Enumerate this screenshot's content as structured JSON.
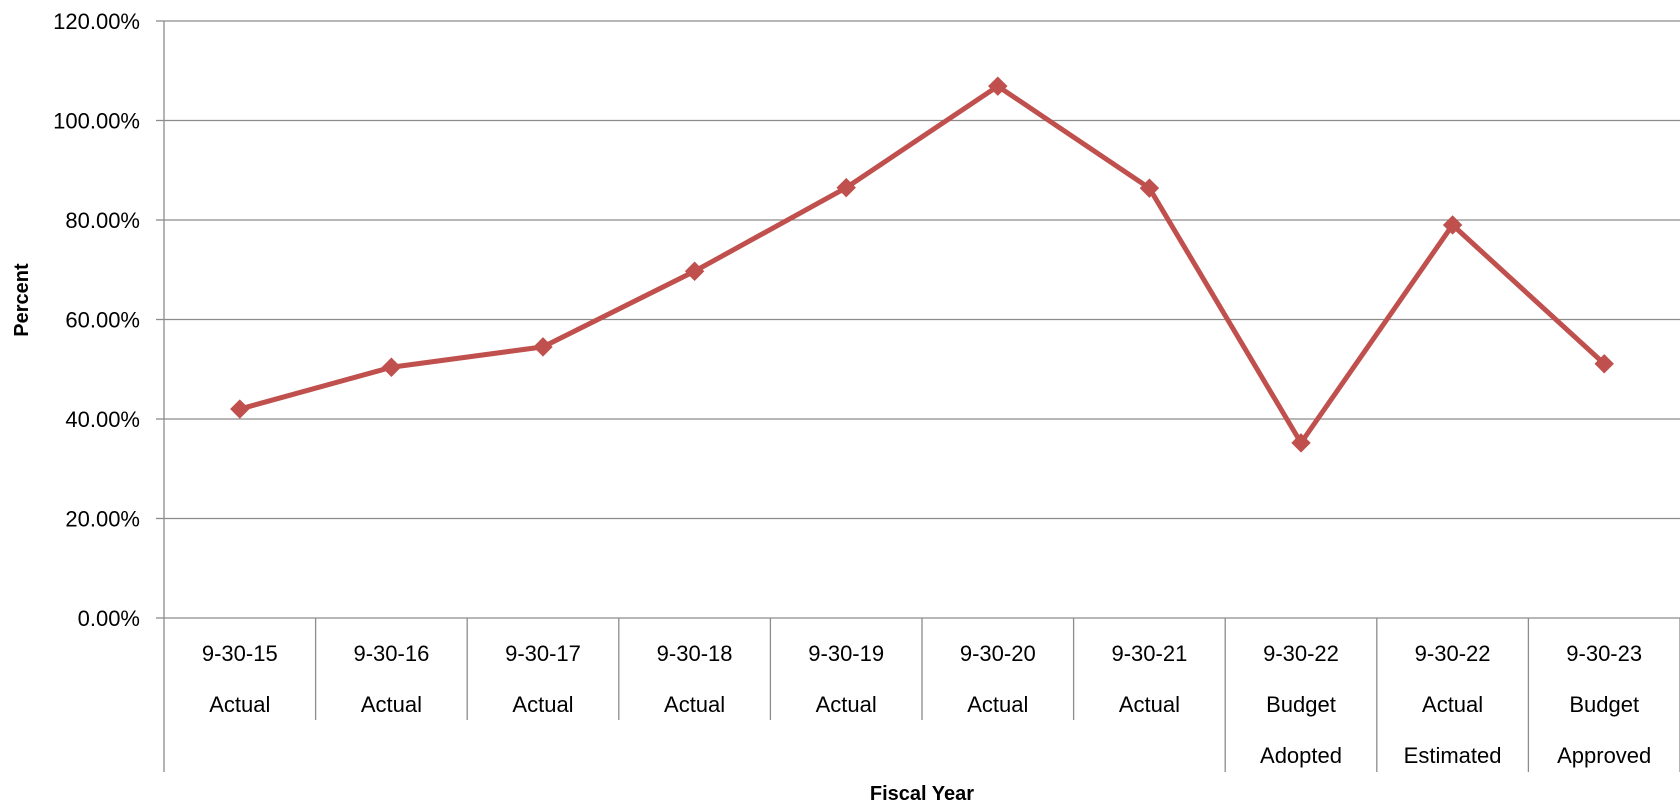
{
  "chart_data": {
    "type": "line",
    "title": "",
    "xlabel": "Fiscal Year",
    "ylabel": "Percent",
    "ylim": [
      0,
      120
    ],
    "y_ticks": [
      "0.00%",
      "20.00%",
      "40.00%",
      "60.00%",
      "80.00%",
      "100.00%",
      "120.00%"
    ],
    "grid": true,
    "categories": [
      {
        "line1": "9-30-15",
        "line2": "Actual",
        "line3": ""
      },
      {
        "line1": "9-30-16",
        "line2": "Actual",
        "line3": ""
      },
      {
        "line1": "9-30-17",
        "line2": "Actual",
        "line3": ""
      },
      {
        "line1": "9-30-18",
        "line2": "Actual",
        "line3": ""
      },
      {
        "line1": "9-30-19",
        "line2": "Actual",
        "line3": ""
      },
      {
        "line1": "9-30-20",
        "line2": "Actual",
        "line3": ""
      },
      {
        "line1": "9-30-21",
        "line2": "Actual",
        "line3": ""
      },
      {
        "line1": "9-30-22",
        "line2": "Budget",
        "line3": "Adopted"
      },
      {
        "line1": "9-30-22",
        "line2": "Actual",
        "line3": "Estimated"
      },
      {
        "line1": "9-30-23",
        "line2": "Budget",
        "line3": "Approved"
      }
    ],
    "series": [
      {
        "values": [
          42.0,
          50.4,
          54.5,
          69.7,
          86.5,
          106.9,
          86.4,
          35.2,
          79.0,
          51.1
        ],
        "color": "#c0504d",
        "marker": "diamond"
      }
    ]
  }
}
